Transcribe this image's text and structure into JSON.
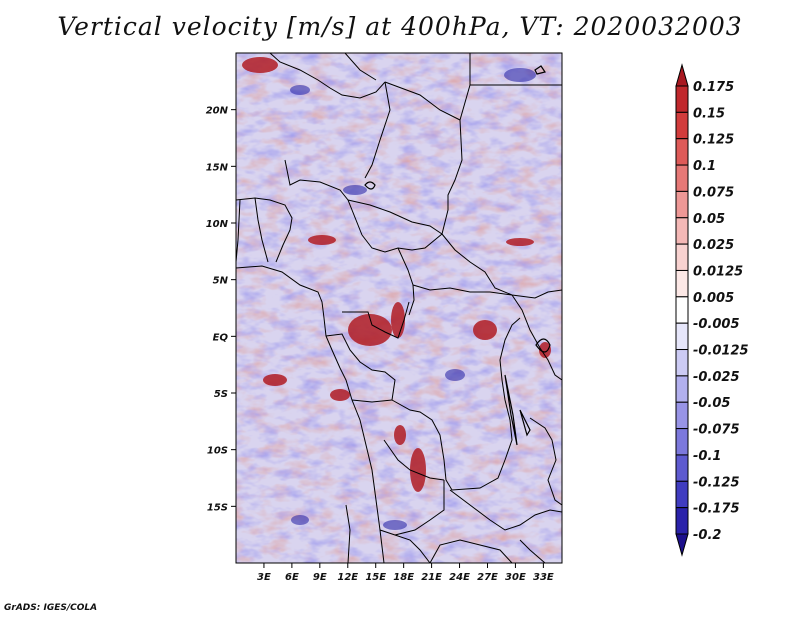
{
  "title": "Vertical velocity [m/s] at 400hPa, VT: 2020032003",
  "credit": "GrADS: IGES/COLA",
  "map": {
    "lon_range": [
      0,
      35
    ],
    "lat_range": [
      -20,
      25
    ],
    "lat_ticks": [
      {
        "lat": 20,
        "label": "20N"
      },
      {
        "lat": 15,
        "label": "15N"
      },
      {
        "lat": 10,
        "label": "10N"
      },
      {
        "lat": 5,
        "label": "5N"
      },
      {
        "lat": 0,
        "label": "EQ"
      },
      {
        "lat": -5,
        "label": "5S"
      },
      {
        "lat": -10,
        "label": "10S"
      },
      {
        "lat": -15,
        "label": "15S"
      }
    ],
    "lon_ticks": [
      {
        "lon": 3,
        "label": "3E"
      },
      {
        "lon": 6,
        "label": "6E"
      },
      {
        "lon": 9,
        "label": "9E"
      },
      {
        "lon": 12,
        "label": "12E"
      },
      {
        "lon": 15,
        "label": "15E"
      },
      {
        "lon": 18,
        "label": "18E"
      },
      {
        "lon": 21,
        "label": "21E"
      },
      {
        "lon": 24,
        "label": "24E"
      },
      {
        "lon": 27,
        "label": "27E"
      },
      {
        "lon": 30,
        "label": "30E"
      },
      {
        "lon": 33,
        "label": "33E"
      }
    ]
  },
  "colorbar": {
    "levels": [
      {
        "label": "0.175",
        "color": "#a81820"
      },
      {
        "label": "0.15",
        "color": "#c0282c"
      },
      {
        "label": "0.125",
        "color": "#d23c3c"
      },
      {
        "label": "0.1",
        "color": "#de5a58"
      },
      {
        "label": "0.075",
        "color": "#e67876"
      },
      {
        "label": "0.05",
        "color": "#ee9896"
      },
      {
        "label": "0.025",
        "color": "#f4b8b6"
      },
      {
        "label": "0.0125",
        "color": "#f8d2d0"
      },
      {
        "label": "0.005",
        "color": "#fce8e6"
      },
      {
        "label": "-0.005",
        "color": "#ffffff"
      },
      {
        "label": "-0.0125",
        "color": "#e6e6fa"
      },
      {
        "label": "-0.025",
        "color": "#cccbf4"
      },
      {
        "label": "-0.05",
        "color": "#b2b0ee"
      },
      {
        "label": "-0.075",
        "color": "#9894e6"
      },
      {
        "label": "-0.1",
        "color": "#7c78dc"
      },
      {
        "label": "-0.125",
        "color": "#5e5ad0"
      },
      {
        "label": "-0.175",
        "color": "#403cc0"
      },
      {
        "label": "-0.2",
        "color": "#2a22aa"
      }
    ],
    "below_color": "#1c108c"
  }
}
